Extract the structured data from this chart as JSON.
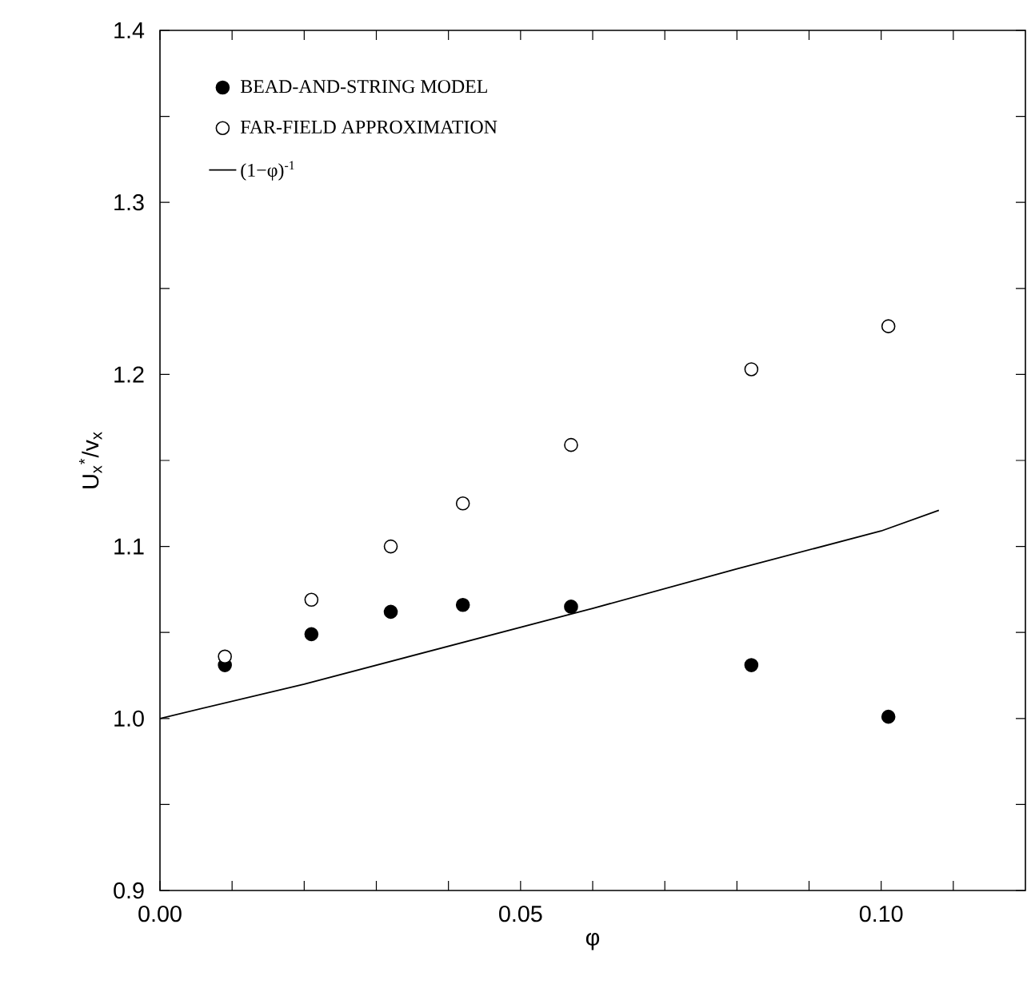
{
  "chart_data": {
    "type": "scatter",
    "xlabel": "φ",
    "ylabel": "U$_{x}$$^{*}$/v$_{x}$",
    "xlim": [
      0,
      0.12
    ],
    "ylim": [
      0.9,
      1.4
    ],
    "xticks": [
      {
        "value": 0,
        "label": "0.00"
      },
      {
        "value": 0.01,
        "label": null
      },
      {
        "value": 0.02,
        "label": null
      },
      {
        "value": 0.03,
        "label": null
      },
      {
        "value": 0.04,
        "label": null
      },
      {
        "value": 0.05,
        "label": "0.05"
      },
      {
        "value": 0.06,
        "label": null
      },
      {
        "value": 0.07,
        "label": null
      },
      {
        "value": 0.08,
        "label": null
      },
      {
        "value": 0.09,
        "label": null
      },
      {
        "value": 0.1,
        "label": "0.10"
      },
      {
        "value": 0.11,
        "label": null
      }
    ],
    "yticks": [
      {
        "value": 0.9,
        "label": "0.9"
      },
      {
        "value": 0.95,
        "label": null
      },
      {
        "value": 1.0,
        "label": "1.0"
      },
      {
        "value": 1.05,
        "label": null
      },
      {
        "value": 1.1,
        "label": "1.1"
      },
      {
        "value": 1.15,
        "label": null
      },
      {
        "value": 1.2,
        "label": "1.2"
      },
      {
        "value": 1.25,
        "label": null
      },
      {
        "value": 1.3,
        "label": "1.3"
      },
      {
        "value": 1.35,
        "label": null
      },
      {
        "value": 1.4,
        "label": "1.4"
      }
    ],
    "legend": "top left",
    "series": [
      {
        "name": "BEAD-AND-STRING MODEL",
        "color": "#000000",
        "marker": "circle",
        "x": [
          0.009,
          0.021,
          0.032,
          0.042,
          0.057,
          0.082,
          0.101
        ],
        "values": [
          1.031,
          1.049,
          1.062,
          1.066,
          1.065,
          1.031,
          1.001
        ]
      },
      {
        "name": "FAR-FIELD APPROXIMATION",
        "color": "#000000",
        "marker": "circle",
        "x": [
          0.009,
          0.021,
          0.032,
          0.042,
          0.057,
          0.082,
          0.101
        ],
        "values": [
          1.036,
          1.069,
          1.1,
          1.125,
          1.159,
          1.203,
          1.228
        ]
      },
      {
        "name": "(1−φ)$^{-1}$",
        "type": "line",
        "marker": "none",
        "line_style": "solid",
        "color": "#000000",
        "x": [
          0,
          0.02,
          0.04,
          0.06,
          0.08,
          0.1,
          0.108
        ],
        "values": [
          1.0,
          1.02,
          1.042,
          1.064,
          1.087,
          1.109,
          1.121
        ]
      }
    ]
  }
}
